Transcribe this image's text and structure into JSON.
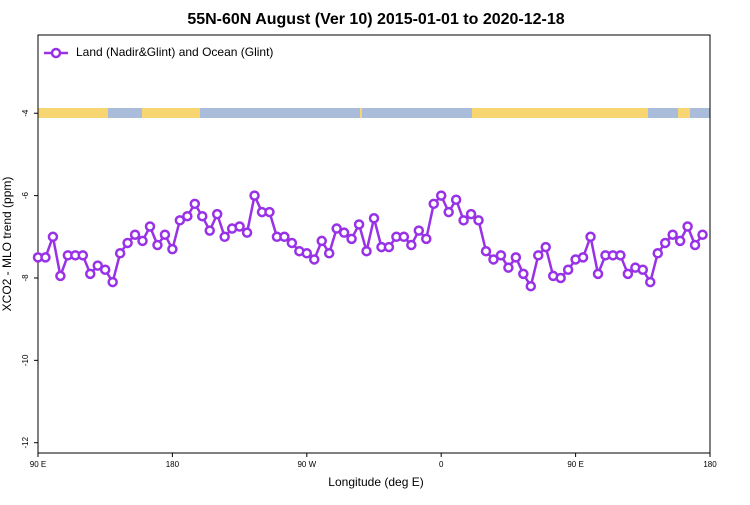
{
  "chart_data": {
    "type": "line",
    "title": "55N-60N August (Ver 10)   2015-01-01 to 2020-12-18",
    "x_label": "Longitude (deg E)",
    "y_label": "XCO2 - MLO trend (ppm)",
    "x": [
      90,
      95,
      100,
      105,
      110,
      115,
      120,
      125,
      130,
      135,
      140,
      145,
      150,
      155,
      160,
      165,
      170,
      175,
      180,
      185,
      190,
      195,
      200,
      205,
      210,
      215,
      220,
      225,
      230,
      235,
      240,
      245,
      250,
      255,
      260,
      265,
      270,
      275,
      280,
      285,
      290,
      295,
      300,
      305,
      310,
      315,
      320,
      325,
      330,
      335,
      340,
      345,
      350,
      355,
      360,
      365,
      370,
      375,
      380,
      385,
      390,
      395,
      400,
      405,
      410,
      415,
      420,
      425,
      430,
      435,
      440,
      445,
      450,
      455,
      460,
      465,
      470,
      475,
      480,
      485,
      490,
      495,
      500,
      505,
      510,
      515,
      520,
      525,
      530,
      535
    ],
    "series": [
      {
        "name": "Land (Nadir&Glint) and Ocean (Glint)",
        "color": "#9932e6",
        "values": [
          -7.5,
          -7.5,
          -7.0,
          -7.95,
          -7.45,
          -7.45,
          -7.45,
          -7.9,
          -7.7,
          -7.8,
          -8.1,
          -7.4,
          -7.15,
          -6.95,
          -7.1,
          -6.75,
          -7.2,
          -6.95,
          -7.3,
          -6.6,
          -6.5,
          -6.2,
          -6.5,
          -6.85,
          -6.45,
          -7.0,
          -6.8,
          -6.75,
          -6.9,
          -6.0,
          -6.4,
          -6.4,
          -7.0,
          -7.0,
          -7.15,
          -7.35,
          -7.4,
          -7.55,
          -7.1,
          -7.4,
          -6.8,
          -6.9,
          -7.05,
          -6.7,
          -7.35,
          -6.55,
          -7.25,
          -7.25,
          -7.0,
          -7.0,
          -7.2,
          -6.85,
          -7.05,
          -6.2,
          -6.0,
          -6.4,
          -6.1,
          -6.6,
          -6.45,
          -6.6,
          -7.35,
          -7.55,
          -7.45,
          -7.75,
          -7.5,
          -7.9,
          -8.2,
          -7.45,
          -7.25,
          -7.95,
          -8.0,
          -7.8,
          -7.55,
          -7.5,
          -7.0,
          -7.9,
          -7.45,
          -7.45,
          -7.45,
          -7.9,
          -7.75,
          -7.8,
          -8.1,
          -7.4,
          -7.15,
          -6.95,
          -7.1,
          -6.75,
          -7.2,
          -6.95
        ]
      }
    ],
    "xlim": [
      90,
      540
    ],
    "xticks": [
      {
        "value": 90,
        "label": "90 E"
      },
      180,
      {
        "value": 270,
        "label": "90 W"
      },
      {
        "value": 360,
        "label": "0"
      },
      {
        "value": 450,
        "label": "90 E"
      },
      {
        "value": 540,
        "label": "180"
      }
    ],
    "ylim": [
      -12.25,
      -2.1
    ],
    "yticks": [
      -4,
      -6,
      -8,
      -10,
      -12
    ],
    "legend": "upper left"
  }
}
